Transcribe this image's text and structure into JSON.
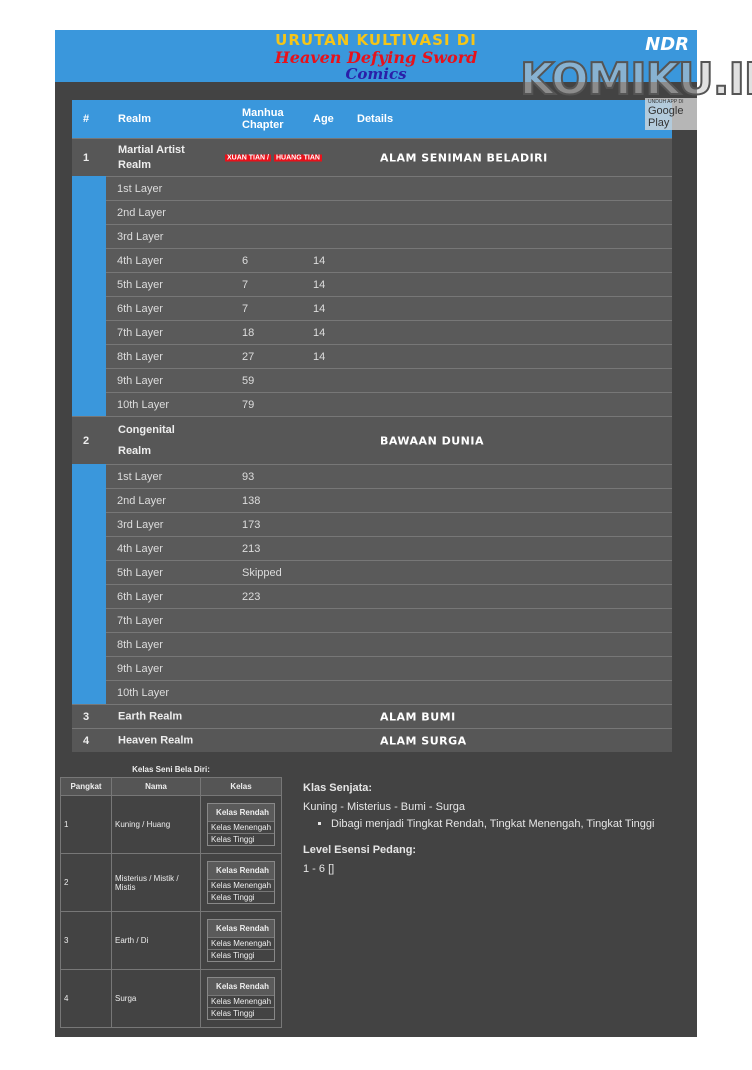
{
  "banner": {
    "line1": "URUTAN KULTIVASI DI",
    "line2": "Heaven Defying Sword",
    "line3": "Comics",
    "logo": "NDR"
  },
  "watermark": {
    "text": "KOMIKU.ID",
    "store_small": "UNDUH APP DI",
    "store": "Google Play"
  },
  "table": {
    "headers": [
      "#",
      "Realm",
      "Manhua Chapter",
      "Age",
      "Details"
    ],
    "realms": [
      {
        "no": "1",
        "name": "Martial Artist Realm",
        "badges": [
          "XUAN TIAN /",
          "HUANG TIAN"
        ],
        "details": "ALAM SENIMAN BELADIRI",
        "layers": [
          {
            "name": "1st Layer",
            "chapter": "",
            "age": ""
          },
          {
            "name": "2nd Layer",
            "chapter": "",
            "age": ""
          },
          {
            "name": "3rd Layer",
            "chapter": "",
            "age": ""
          },
          {
            "name": "4th Layer",
            "chapter": "6",
            "age": "14"
          },
          {
            "name": "5th Layer",
            "chapter": "7",
            "age": "14"
          },
          {
            "name": "6th Layer",
            "chapter": "7",
            "age": "14"
          },
          {
            "name": "7th Layer",
            "chapter": "18",
            "age": "14"
          },
          {
            "name": "8th Layer",
            "chapter": "27",
            "age": "14"
          },
          {
            "name": "9th Layer",
            "chapter": "59",
            "age": ""
          },
          {
            "name": "10th Layer",
            "chapter": "79",
            "age": ""
          }
        ]
      },
      {
        "no": "2",
        "name": "Congenital Realm",
        "badges": [],
        "details": "BAWAAN DUNIA",
        "layers": [
          {
            "name": "1st Layer",
            "chapter": "93",
            "age": ""
          },
          {
            "name": "2nd Layer",
            "chapter": "138",
            "age": ""
          },
          {
            "name": "3rd Layer",
            "chapter": "173",
            "age": ""
          },
          {
            "name": "4th Layer",
            "chapter": "213",
            "age": ""
          },
          {
            "name": "5th Layer",
            "chapter": "Skipped",
            "age": ""
          },
          {
            "name": "6th Layer",
            "chapter": "223",
            "age": ""
          },
          {
            "name": "7th Layer",
            "chapter": "",
            "age": ""
          },
          {
            "name": "8th Layer",
            "chapter": "",
            "age": ""
          },
          {
            "name": "9th Layer",
            "chapter": "",
            "age": ""
          },
          {
            "name": "10th Layer",
            "chapter": "",
            "age": ""
          }
        ]
      },
      {
        "no": "3",
        "name": "Earth Realm",
        "badges": [],
        "details": "ALAM BUMI",
        "layers": []
      },
      {
        "no": "4",
        "name": "Heaven Realm",
        "badges": [],
        "details": "ALAM SURGA",
        "layers": []
      }
    ]
  },
  "kelas": {
    "caption": "Kelas Seni Bela Diri:",
    "headers": [
      "Pangkat",
      "Nama",
      "Kelas"
    ],
    "rows": [
      {
        "no": "1",
        "name": "Kuning / Huang"
      },
      {
        "no": "2",
        "name": "Misterius / Mistik / Mistis"
      },
      {
        "no": "3",
        "name": "Earth / Di"
      },
      {
        "no": "4",
        "name": "Surga"
      }
    ],
    "levels": [
      "Kelas Rendah",
      "Kelas Menengah",
      "Kelas Tinggi"
    ]
  },
  "senjata": {
    "title": "Klas Senjata:",
    "text": "Kuning - Misterius - Bumi - Surga",
    "bullet": "Dibagi menjadi Tingkat Rendah, Tingkat Menengah, Tingkat Tinggi"
  },
  "esensi": {
    "title": "Level Esensi Pedang:",
    "text": "1 - 6 []"
  }
}
